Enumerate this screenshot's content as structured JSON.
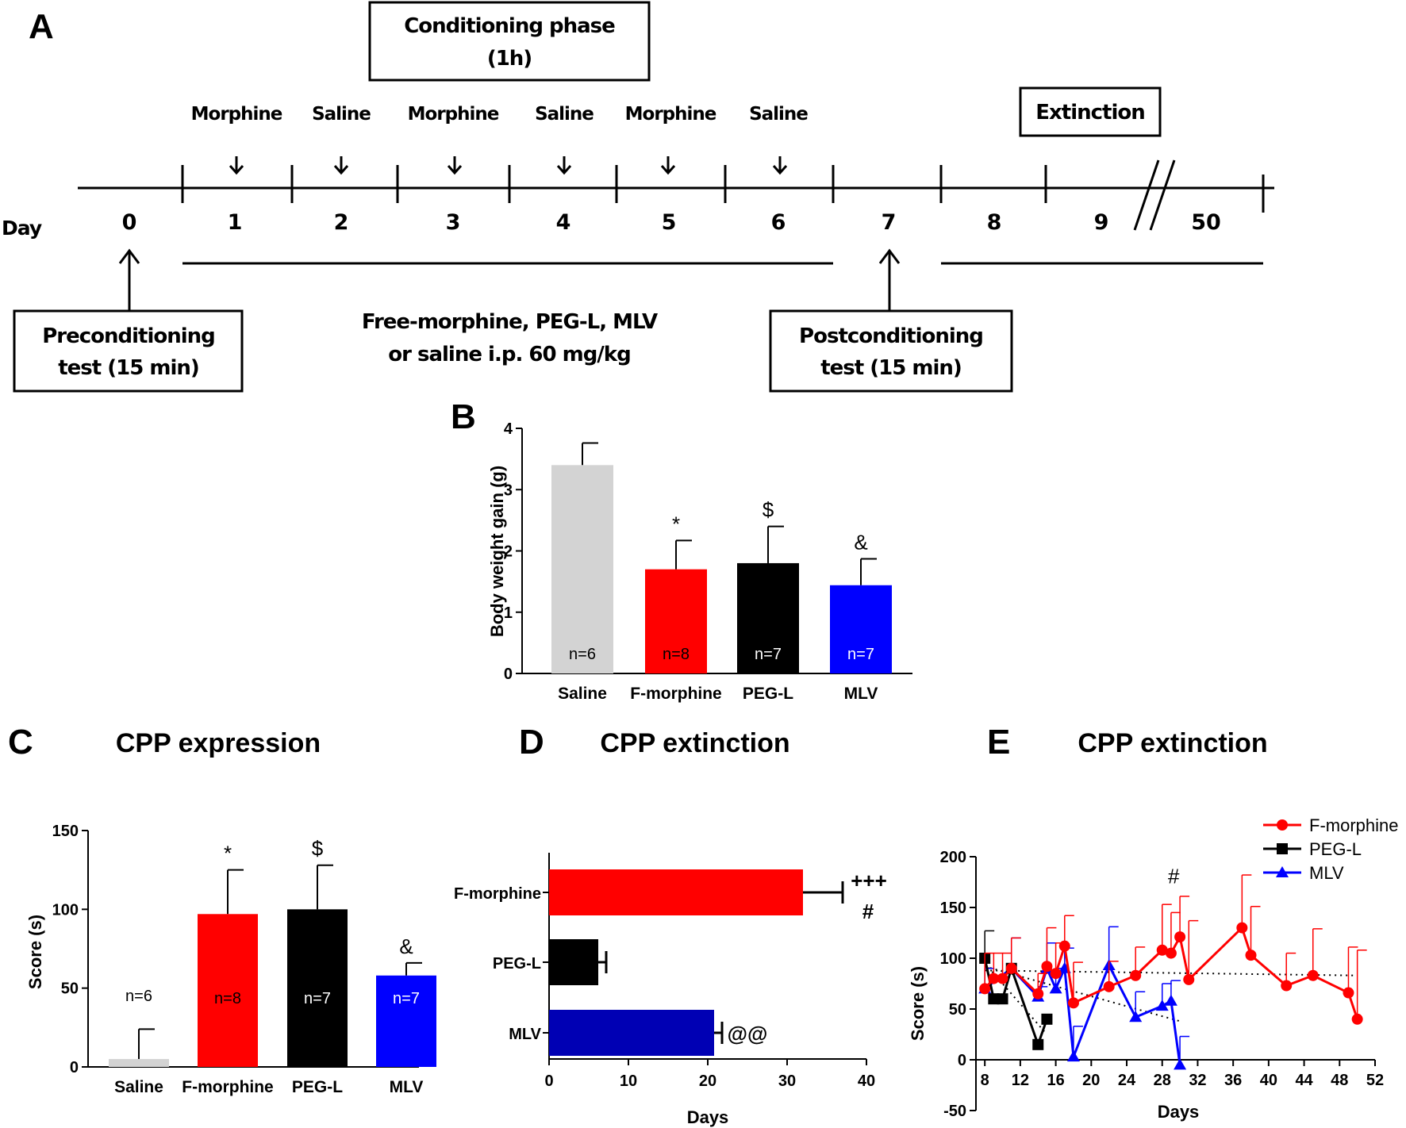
{
  "panels": {
    "a": "A",
    "b": "B",
    "c": "C",
    "d": "D",
    "e": "E"
  },
  "timeline": {
    "conditioning_line1": "Conditioning phase",
    "conditioning_line2": "(1h)",
    "extinction": "Extinction",
    "treatments": [
      "Morphine",
      "Saline",
      "Morphine",
      "Saline",
      "Morphine",
      "Saline"
    ],
    "day_label": "Day",
    "days": [
      "0",
      "1",
      "2",
      "3",
      "4",
      "5",
      "6",
      "7",
      "8",
      "9",
      "50"
    ],
    "precond_line1": "Preconditioning",
    "precond_line2": "test (15 min)",
    "drug_line1": "Free-morphine, PEG-L, MLV",
    "drug_line2": "or saline i.p. 60 mg/kg",
    "postcond_line1": "Postconditioning",
    "postcond_line2": "test (15 min)"
  },
  "colors": {
    "saline": "#d3d3d3",
    "fmorphine": "#ff0000",
    "pegl": "#000000",
    "mlv": "#0000ff",
    "mlv_dark": "#0000b4"
  },
  "chart_data": [
    {
      "id": "B",
      "type": "bar",
      "title": "",
      "xlabel": "",
      "ylabel": "Body weight gain (g)",
      "ylim": [
        0,
        4
      ],
      "yticks": [
        "0",
        "1",
        "2",
        "3",
        "4"
      ],
      "categories": [
        "Saline",
        "F-morphine",
        "PEG-L",
        "MLV"
      ],
      "values": [
        3.4,
        1.7,
        1.8,
        1.44
      ],
      "errors": [
        0.36,
        0.47,
        0.6,
        0.43
      ],
      "n_labels": [
        "n=6",
        "n=8",
        "n=7",
        "n=7"
      ],
      "significance": [
        "",
        "*",
        "$",
        "&"
      ]
    },
    {
      "id": "C",
      "type": "bar",
      "title": "CPP expression",
      "xlabel": "",
      "ylabel": "Score (s)",
      "ylim": [
        0,
        150
      ],
      "yticks": [
        "0",
        "50",
        "100",
        "150"
      ],
      "categories": [
        "Saline",
        "F-morphine",
        "PEG-L",
        "MLV"
      ],
      "values": [
        5,
        97,
        100,
        58
      ],
      "errors": [
        19,
        28,
        28,
        8
      ],
      "n_labels": [
        "n=6",
        "n=8",
        "n=7",
        "n=7"
      ],
      "significance": [
        "",
        "*",
        "$",
        "&"
      ]
    },
    {
      "id": "D",
      "type": "bar",
      "orientation": "horizontal",
      "title": "CPP extinction",
      "xlabel": "Days",
      "ylabel": "",
      "xlim": [
        0,
        40
      ],
      "xticks": [
        "0",
        "10",
        "20",
        "30",
        "40"
      ],
      "categories": [
        "F-morphine",
        "PEG-L",
        "MLV"
      ],
      "values": [
        32,
        6.2,
        20.8
      ],
      "errors": [
        5,
        1,
        1
      ],
      "significance": [
        "+++",
        "",
        "@@"
      ],
      "significance2": "#"
    },
    {
      "id": "E",
      "type": "line",
      "title": "CPP extinction",
      "xlabel": "Days",
      "ylabel": "Score (s)",
      "xlim": [
        7,
        52
      ],
      "ylim": [
        -50,
        200
      ],
      "xticks": [
        "8",
        "12",
        "16",
        "20",
        "24",
        "28",
        "32",
        "36",
        "40",
        "44",
        "48",
        "52"
      ],
      "yticks": [
        "-50",
        "0",
        "50",
        "100",
        "150",
        "200"
      ],
      "annotation": "#",
      "series": [
        {
          "name": "F-morphine",
          "marker": "circle",
          "x": [
            8,
            9,
            10,
            11,
            14,
            15,
            16,
            17,
            18,
            22,
            25,
            28,
            29,
            30,
            31,
            37,
            38,
            42,
            45,
            49,
            50
          ],
          "y": [
            70,
            80,
            80,
            90,
            65,
            92,
            85,
            112,
            56,
            72,
            83,
            108,
            105,
            121,
            79,
            130,
            103,
            73,
            83,
            66,
            40
          ],
          "err": [
            35,
            25,
            25,
            30,
            20,
            38,
            30,
            30,
            40,
            25,
            28,
            45,
            40,
            40,
            58,
            52,
            48,
            32,
            46,
            45,
            68
          ]
        },
        {
          "name": "PEG-L",
          "marker": "square",
          "x": [
            8,
            9,
            10,
            11,
            14,
            15
          ],
          "y": [
            100,
            60,
            60,
            90,
            15,
            40
          ],
          "err": [
            27,
            0,
            0,
            0,
            0,
            0
          ]
        },
        {
          "name": "MLV",
          "marker": "triangle",
          "x": [
            8,
            11,
            14,
            15,
            16,
            17,
            18,
            22,
            25,
            28,
            29,
            30
          ],
          "y": [
            70,
            90,
            62,
            90,
            70,
            90,
            3,
            93,
            42,
            53,
            58,
            -5
          ],
          "err": [
            20,
            30,
            10,
            25,
            20,
            20,
            30,
            38,
            25,
            22,
            20,
            28
          ]
        }
      ],
      "trendlines": [
        {
          "series": "F-morphine",
          "x": [
            8,
            50
          ],
          "y": [
            88,
            83
          ]
        },
        {
          "series": "PEG-L",
          "x": [
            8,
            15
          ],
          "y": [
            95,
            25
          ]
        },
        {
          "series": "MLV",
          "x": [
            8,
            30
          ],
          "y": [
            92,
            38
          ]
        }
      ]
    }
  ]
}
